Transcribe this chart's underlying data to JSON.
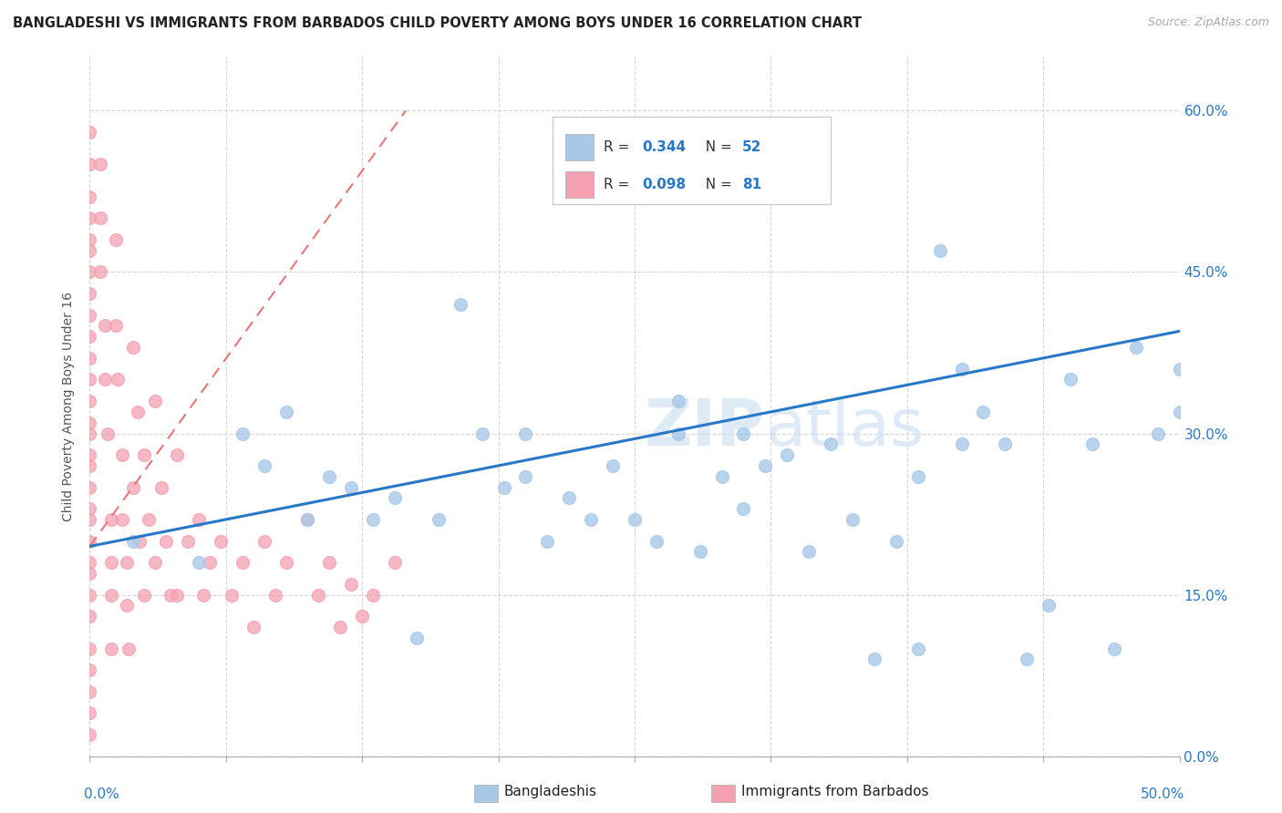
{
  "title": "BANGLADESHI VS IMMIGRANTS FROM BARBADOS CHILD POVERTY AMONG BOYS UNDER 16 CORRELATION CHART",
  "source": "Source: ZipAtlas.com",
  "ylabel": "Child Poverty Among Boys Under 16",
  "blue_color": "#a8c8e8",
  "pink_color": "#f4a0b0",
  "blue_line_color": "#2878c8",
  "pink_line_color": "#e87878",
  "watermark_color": "#c8ddf0",
  "blue_scatter_x": [
    0.02,
    0.05,
    0.07,
    0.08,
    0.09,
    0.1,
    0.11,
    0.12,
    0.13,
    0.14,
    0.15,
    0.16,
    0.17,
    0.18,
    0.19,
    0.2,
    0.2,
    0.21,
    0.22,
    0.23,
    0.24,
    0.25,
    0.26,
    0.27,
    0.27,
    0.28,
    0.29,
    0.3,
    0.3,
    0.31,
    0.32,
    0.33,
    0.34,
    0.35,
    0.36,
    0.37,
    0.38,
    0.38,
    0.39,
    0.4,
    0.4,
    0.41,
    0.42,
    0.43,
    0.44,
    0.45,
    0.46,
    0.47,
    0.48,
    0.49,
    0.5,
    0.5
  ],
  "blue_scatter_y": [
    0.2,
    0.18,
    0.3,
    0.27,
    0.32,
    0.22,
    0.26,
    0.25,
    0.22,
    0.24,
    0.11,
    0.22,
    0.42,
    0.3,
    0.25,
    0.26,
    0.3,
    0.2,
    0.24,
    0.22,
    0.27,
    0.22,
    0.2,
    0.3,
    0.33,
    0.19,
    0.26,
    0.23,
    0.3,
    0.27,
    0.28,
    0.19,
    0.29,
    0.22,
    0.09,
    0.2,
    0.1,
    0.26,
    0.47,
    0.29,
    0.36,
    0.32,
    0.29,
    0.09,
    0.14,
    0.35,
    0.29,
    0.1,
    0.38,
    0.3,
    0.36,
    0.32
  ],
  "pink_scatter_x": [
    0.0,
    0.0,
    0.0,
    0.0,
    0.0,
    0.0,
    0.0,
    0.0,
    0.0,
    0.0,
    0.0,
    0.0,
    0.0,
    0.0,
    0.0,
    0.0,
    0.0,
    0.0,
    0.0,
    0.0,
    0.0,
    0.0,
    0.0,
    0.0,
    0.0,
    0.0,
    0.0,
    0.0,
    0.0,
    0.0,
    0.005,
    0.005,
    0.005,
    0.007,
    0.007,
    0.008,
    0.01,
    0.01,
    0.01,
    0.01,
    0.012,
    0.012,
    0.013,
    0.015,
    0.015,
    0.017,
    0.017,
    0.018,
    0.02,
    0.02,
    0.022,
    0.023,
    0.025,
    0.025,
    0.027,
    0.03,
    0.03,
    0.033,
    0.035,
    0.037,
    0.04,
    0.04,
    0.045,
    0.05,
    0.052,
    0.055,
    0.06,
    0.065,
    0.07,
    0.075,
    0.08,
    0.085,
    0.09,
    0.1,
    0.105,
    0.11,
    0.115,
    0.12,
    0.125,
    0.13,
    0.14
  ],
  "pink_scatter_y": [
    0.58,
    0.55,
    0.52,
    0.5,
    0.48,
    0.47,
    0.45,
    0.43,
    0.41,
    0.39,
    0.37,
    0.35,
    0.33,
    0.31,
    0.3,
    0.28,
    0.27,
    0.25,
    0.23,
    0.22,
    0.2,
    0.18,
    0.17,
    0.15,
    0.13,
    0.1,
    0.08,
    0.06,
    0.04,
    0.02,
    0.55,
    0.5,
    0.45,
    0.4,
    0.35,
    0.3,
    0.22,
    0.18,
    0.15,
    0.1,
    0.48,
    0.4,
    0.35,
    0.28,
    0.22,
    0.18,
    0.14,
    0.1,
    0.38,
    0.25,
    0.32,
    0.2,
    0.28,
    0.15,
    0.22,
    0.33,
    0.18,
    0.25,
    0.2,
    0.15,
    0.28,
    0.15,
    0.2,
    0.22,
    0.15,
    0.18,
    0.2,
    0.15,
    0.18,
    0.12,
    0.2,
    0.15,
    0.18,
    0.22,
    0.15,
    0.18,
    0.12,
    0.16,
    0.13,
    0.15,
    0.18
  ],
  "blue_line_x": [
    0.0,
    0.5
  ],
  "blue_line_y": [
    0.195,
    0.395
  ],
  "pink_line_x": [
    0.0,
    0.145
  ],
  "pink_line_y": [
    0.195,
    0.6
  ],
  "xlim": [
    0.0,
    0.5
  ],
  "ylim": [
    0.0,
    0.65
  ],
  "yticks": [
    0.0,
    0.15,
    0.3,
    0.45,
    0.6
  ],
  "ytick_labels": [
    "0.0%",
    "15.0%",
    "30.0%",
    "45.0%",
    "60.0%"
  ],
  "xtick_labels_show": [
    "0.0%",
    "50.0%"
  ]
}
